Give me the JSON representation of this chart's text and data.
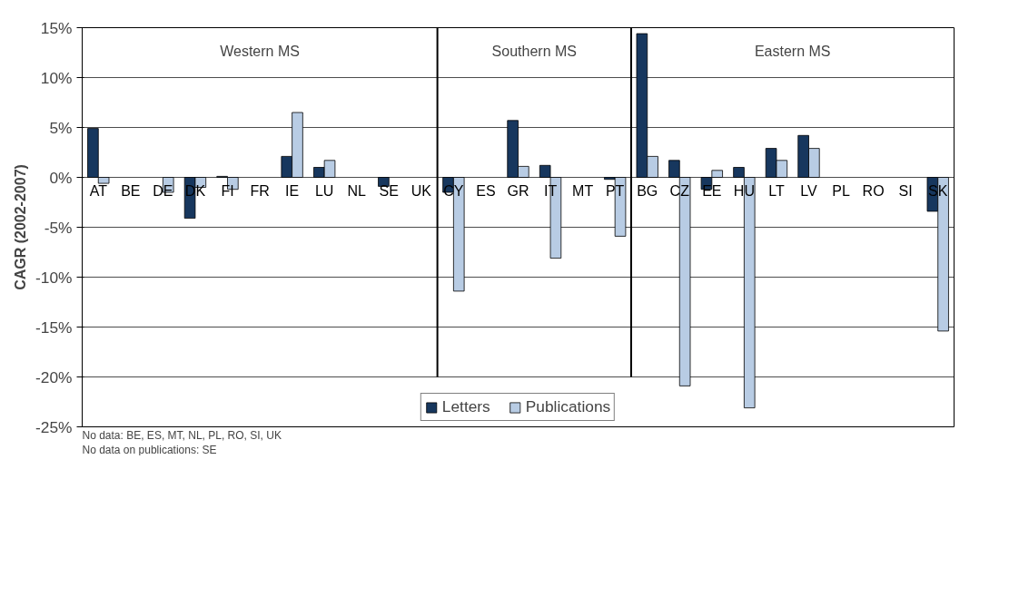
{
  "chart_data": {
    "type": "bar",
    "ylabel": "CAGR (2002-2007)",
    "categories": [
      "AT",
      "BE",
      "DE",
      "DK",
      "FI",
      "FR",
      "IE",
      "LU",
      "NL",
      "SE",
      "UK",
      "CY",
      "ES",
      "GR",
      "IT",
      "MT",
      "PT",
      "BG",
      "CZ",
      "EE",
      "HU",
      "LT",
      "LV",
      "PL",
      "RO",
      "SI",
      "SK"
    ],
    "series": [
      {
        "name": "Letters",
        "color": "#17375e",
        "values": [
          4.9,
          null,
          null,
          -4.1,
          0.1,
          null,
          2.1,
          1.0,
          null,
          -0.9,
          null,
          -1.5,
          null,
          5.7,
          1.2,
          null,
          -0.2,
          14.4,
          1.7,
          -1.2,
          1.0,
          2.9,
          4.2,
          null,
          null,
          null,
          -3.4
        ]
      },
      {
        "name": "Publications",
        "color": "#b8cce4",
        "values": [
          -0.6,
          null,
          -1.5,
          -1.0,
          -1.2,
          null,
          6.5,
          1.7,
          null,
          null,
          null,
          -11.4,
          null,
          1.1,
          -8.1,
          null,
          -5.9,
          2.1,
          -20.9,
          0.7,
          -23.1,
          1.7,
          2.9,
          null,
          null,
          null,
          -15.4
        ]
      }
    ],
    "ylim": [
      -25,
      15
    ],
    "yticks": [
      {
        "value": -25,
        "label": "-25%"
      },
      {
        "value": -20,
        "label": "-20%"
      },
      {
        "value": -15,
        "label": "-15%"
      },
      {
        "value": -10,
        "label": "-10%"
      },
      {
        "value": -5,
        "label": "-5%"
      },
      {
        "value": 0,
        "label": "0%"
      },
      {
        "value": 5,
        "label": "5%"
      },
      {
        "value": 10,
        "label": "10%"
      },
      {
        "value": 15,
        "label": "15%"
      }
    ],
    "annotations": [
      "Western MS",
      "Southern MS",
      "Eastern MS",
      "No data: BE, ES, MT, NL, PL, RO, SI, UK",
      "No data on publications: SE"
    ],
    "grid": "y",
    "legend": "bottom"
  }
}
